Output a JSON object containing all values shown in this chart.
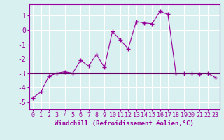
{
  "xlabel": "Windchill (Refroidissement éolien,°C)",
  "x_values": [
    0,
    1,
    2,
    3,
    4,
    5,
    6,
    7,
    8,
    9,
    10,
    11,
    12,
    13,
    14,
    15,
    16,
    17,
    18,
    19,
    20,
    21,
    22,
    23
  ],
  "y_values": [
    -4.7,
    -4.3,
    -3.2,
    -3.0,
    -2.9,
    -3.0,
    -2.1,
    -2.5,
    -1.7,
    -2.6,
    -0.1,
    -0.7,
    -1.3,
    0.6,
    0.5,
    0.45,
    1.3,
    1.1,
    -3.0,
    -3.0,
    -3.0,
    -3.05,
    -3.0,
    -3.3
  ],
  "line_color": "#990099",
  "marker": "+",
  "hline_y": -3.0,
  "hline_color": "#660066",
  "ylim": [
    -5.5,
    1.8
  ],
  "xlim": [
    -0.5,
    23.5
  ],
  "yticks": [
    1,
    0,
    -1,
    -2,
    -3,
    -4,
    -5
  ],
  "xticks": [
    0,
    1,
    2,
    3,
    4,
    5,
    6,
    7,
    8,
    9,
    10,
    11,
    12,
    13,
    14,
    15,
    16,
    17,
    18,
    19,
    20,
    21,
    22,
    23
  ],
  "bg_color": "#d8f0f0",
  "grid_color": "#ffffff",
  "tick_color": "#990099",
  "label_color": "#990099",
  "font_size_xlabel": 6.5,
  "font_size_yticks": 7,
  "font_size_xticks": 6.0
}
